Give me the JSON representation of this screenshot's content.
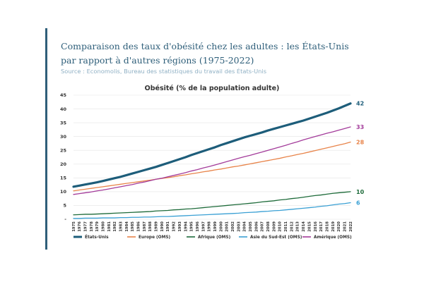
{
  "header": {
    "title": "Comparaison des taux d'obésité chez les adultes : les États-Unis par rapport à d'autres régions (1975-2022)",
    "source": "Source : Economolis, Bureau des statistiques du travail des États-Unis"
  },
  "chart_data": {
    "type": "line",
    "title": "Obésité (% de la population adulte)",
    "xlabel": "",
    "ylabel": "",
    "ylim": [
      0,
      45
    ],
    "y_ticks": [
      "-",
      "5",
      "10",
      "15",
      "20",
      "25",
      "30",
      "35",
      "40",
      "45"
    ],
    "grid": true,
    "legend_position": "bottom",
    "x": [
      "1975",
      "1976",
      "1977",
      "1978",
      "1979",
      "1980",
      "1981",
      "1982",
      "1983",
      "1984",
      "1985",
      "1986",
      "1987",
      "1988",
      "1989",
      "1990",
      "1991",
      "1992",
      "1993",
      "1994",
      "1995",
      "1996",
      "1997",
      "1998",
      "1999",
      "2000",
      "2001",
      "2002",
      "2003",
      "2004",
      "2005",
      "2006",
      "2007",
      "2008",
      "2009",
      "2010",
      "2011",
      "2012",
      "2013",
      "2014",
      "2015",
      "2016",
      "2017",
      "2018",
      "2019",
      "2020",
      "2021",
      "2022"
    ],
    "series": [
      {
        "name": "États-Unis",
        "color": "#1d5d7a",
        "end_label": "42",
        "values": [
          11.8,
          12.2,
          12.6,
          13.0,
          13.4,
          13.9,
          14.4,
          14.9,
          15.4,
          16.0,
          16.6,
          17.2,
          17.8,
          18.4,
          19.0,
          19.7,
          20.4,
          21.1,
          21.8,
          22.5,
          23.3,
          24.0,
          24.7,
          25.4,
          26.1,
          26.9,
          27.6,
          28.3,
          29.0,
          29.7,
          30.3,
          30.9,
          31.5,
          32.2,
          32.8,
          33.4,
          34.0,
          34.6,
          35.2,
          35.8,
          36.5,
          37.2,
          37.9,
          38.6,
          39.4,
          40.2,
          41.1,
          42.0
        ]
      },
      {
        "name": "Europe (OMS)",
        "color": "#e8844a",
        "end_label": "28",
        "values": [
          10.3,
          10.6,
          10.9,
          11.2,
          11.5,
          11.8,
          12.1,
          12.4,
          12.7,
          13.0,
          13.3,
          13.6,
          13.9,
          14.2,
          14.5,
          14.8,
          15.1,
          15.4,
          15.8,
          16.1,
          16.5,
          16.8,
          17.2,
          17.5,
          17.9,
          18.2,
          18.6,
          19.0,
          19.3,
          19.7,
          20.1,
          20.5,
          20.9,
          21.3,
          21.7,
          22.1,
          22.6,
          23.0,
          23.5,
          23.9,
          24.4,
          24.9,
          25.4,
          25.9,
          26.4,
          26.9,
          27.4,
          28.0
        ]
      },
      {
        "name": "Afrique (OMS)",
        "color": "#1e6b3a",
        "end_label": "10",
        "values": [
          1.6,
          1.7,
          1.8,
          1.8,
          1.9,
          2.0,
          2.1,
          2.2,
          2.3,
          2.4,
          2.5,
          2.6,
          2.7,
          2.8,
          3.0,
          3.1,
          3.2,
          3.4,
          3.5,
          3.7,
          3.8,
          4.0,
          4.2,
          4.4,
          4.6,
          4.8,
          5.0,
          5.2,
          5.4,
          5.6,
          5.8,
          6.0,
          6.3,
          6.5,
          6.7,
          7.0,
          7.2,
          7.5,
          7.7,
          8.0,
          8.3,
          8.6,
          8.8,
          9.1,
          9.4,
          9.6,
          9.8,
          10.0
        ]
      },
      {
        "name": "Asie du Sud-Est (OMS)",
        "color": "#3aa0d4",
        "end_label": "6",
        "values": [
          0.3,
          0.3,
          0.4,
          0.4,
          0.4,
          0.5,
          0.5,
          0.5,
          0.6,
          0.6,
          0.7,
          0.7,
          0.8,
          0.8,
          0.9,
          1.0,
          1.0,
          1.1,
          1.2,
          1.3,
          1.4,
          1.5,
          1.6,
          1.7,
          1.8,
          1.9,
          2.0,
          2.1,
          2.2,
          2.4,
          2.5,
          2.6,
          2.8,
          2.9,
          3.1,
          3.2,
          3.4,
          3.6,
          3.8,
          4.0,
          4.2,
          4.4,
          4.7,
          4.9,
          5.2,
          5.5,
          5.7,
          6.0
        ]
      },
      {
        "name": "Amérique (OMS)",
        "color": "#a33b9a",
        "end_label": "33",
        "values": [
          9.0,
          9.3,
          9.6,
          9.9,
          10.3,
          10.6,
          11.0,
          11.4,
          11.8,
          12.2,
          12.6,
          13.1,
          13.5,
          14.0,
          14.5,
          14.9,
          15.4,
          15.9,
          16.4,
          16.9,
          17.5,
          18.0,
          18.6,
          19.1,
          19.7,
          20.3,
          20.9,
          21.5,
          22.1,
          22.7,
          23.2,
          23.8,
          24.4,
          25.0,
          25.6,
          26.2,
          26.8,
          27.5,
          28.1,
          28.8,
          29.4,
          30.0,
          30.6,
          31.2,
          31.7,
          32.3,
          32.9,
          33.5
        ]
      }
    ]
  }
}
